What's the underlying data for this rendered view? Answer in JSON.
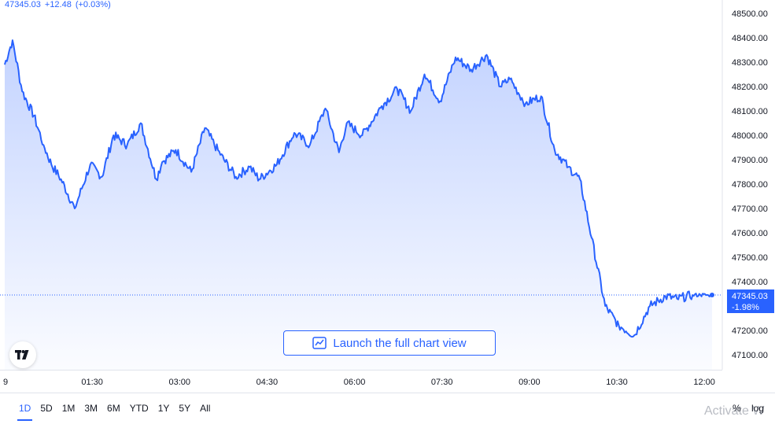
{
  "quote": {
    "last": "47345.03",
    "change": "+12.48",
    "change_pct": "(+0.03%)"
  },
  "last_price_label": {
    "price": "47345.03",
    "change_pct": "-1.98%"
  },
  "launch_button": {
    "label": "Launch the full chart view"
  },
  "range_tabs": [
    "1D",
    "5D",
    "1M",
    "3M",
    "6M",
    "YTD",
    "1Y",
    "5Y",
    "All"
  ],
  "active_range": "1D",
  "scale_options": {
    "percent": "%",
    "log": "log"
  },
  "watermark": "Activate W",
  "colors": {
    "line": "#2962ff",
    "accent": "#2962ff",
    "grid_border": "#e0e3eb"
  },
  "chart_data": {
    "type": "area",
    "x_tick_labels": [
      "9",
      "01:30",
      "03:00",
      "04:30",
      "06:00",
      "07:30",
      "09:00",
      "10:30",
      "12:00"
    ],
    "y_tick_labels": [
      "48500.00",
      "48400.00",
      "48300.00",
      "48200.00",
      "48100.00",
      "48000.00",
      "47900.00",
      "47800.00",
      "47700.00",
      "47600.00",
      "47500.00",
      "47400.00",
      "47300.00",
      "47200.00",
      "47100.00"
    ],
    "ylim": [
      47100,
      48500
    ],
    "xlim_minutes": [
      0,
      728
    ],
    "grid": false,
    "series": [
      {
        "x_minutes": [
          0,
          8,
          18,
          30,
          40,
          48,
          58,
          72,
          88,
          100,
          112,
          126,
          140,
          156,
          162,
          176,
          192,
          206,
          222,
          238,
          252,
          262,
          280,
          298,
          314,
          330,
          344,
          352,
          368,
          388,
          404,
          418,
          432,
          448,
          464,
          480,
          496,
          510,
          520,
          536,
          552,
          566,
          580,
          592,
          604,
          618,
          632,
          648,
          664,
          680,
          692,
          708,
          716,
          724,
          728
        ],
        "values": [
          48290,
          48390,
          48180,
          48080,
          47960,
          47880,
          47820,
          47700,
          47880,
          47830,
          48000,
          47960,
          48050,
          47820,
          47890,
          47940,
          47850,
          48030,
          47920,
          47830,
          47870,
          47820,
          47880,
          48010,
          47960,
          48110,
          47930,
          48050,
          48000,
          48120,
          48190,
          48100,
          48250,
          48140,
          48320,
          48270,
          48330,
          48200,
          48230,
          48130,
          48160,
          47940,
          47870,
          47820,
          47580,
          47300,
          47220,
          47180,
          47300,
          47340,
          47330,
          47345,
          47345,
          47345,
          47345
        ]
      }
    ]
  }
}
